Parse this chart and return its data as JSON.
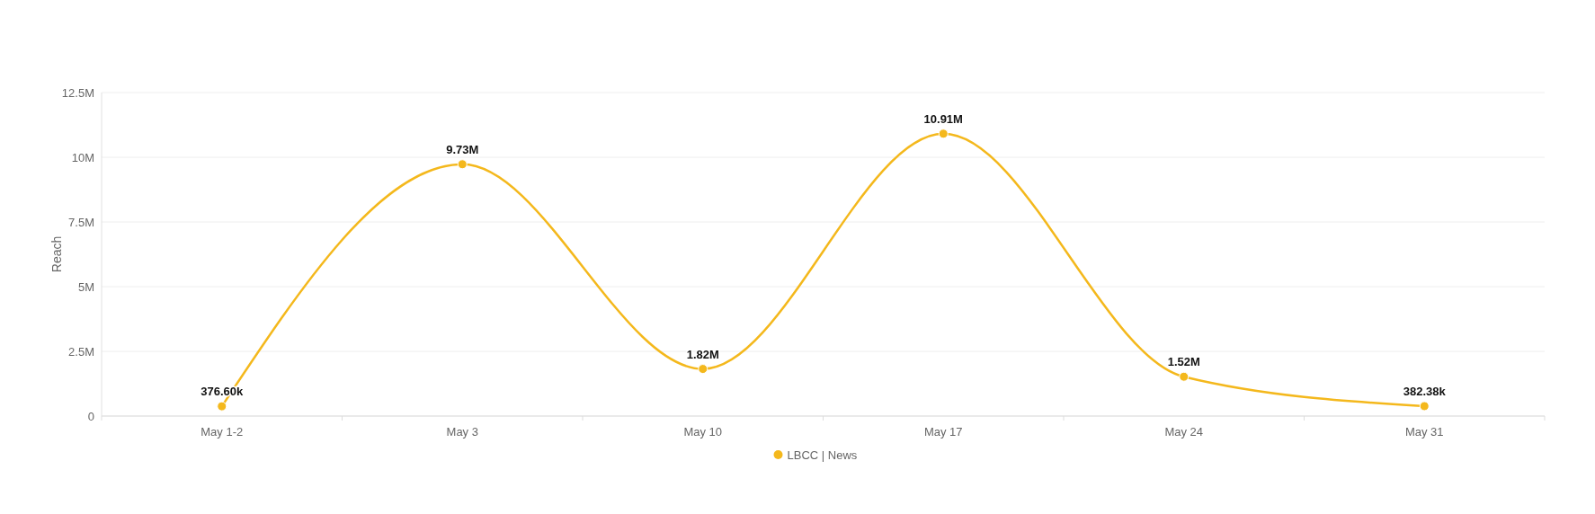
{
  "chart_data": {
    "type": "line",
    "ylabel": "Reach",
    "categories": [
      "May 1-2",
      "May 3",
      "May 10",
      "May 17",
      "May 24",
      "May 31"
    ],
    "series": [
      {
        "name": "LBCC | News",
        "color": "#f4b81c",
        "values": [
          376600,
          9730000,
          1820000,
          10910000,
          1520000,
          382380
        ],
        "value_labels": [
          "376.60k",
          "9.73M",
          "1.82M",
          "10.91M",
          "1.52M",
          "382.38k"
        ]
      }
    ],
    "ylim": [
      0,
      12500000
    ],
    "yticks": [
      0,
      {
        "value": 2500000,
        "label": "2.5M"
      },
      {
        "value": 5000000,
        "label": "5M"
      },
      {
        "value": 7500000,
        "label": "7.5M"
      },
      {
        "value": 10000000,
        "label": "10M"
      },
      {
        "value": 12500000,
        "label": "12.5M"
      }
    ],
    "grid": "y",
    "legend": "bottom",
    "marker": "circle",
    "line_style": "solid"
  }
}
